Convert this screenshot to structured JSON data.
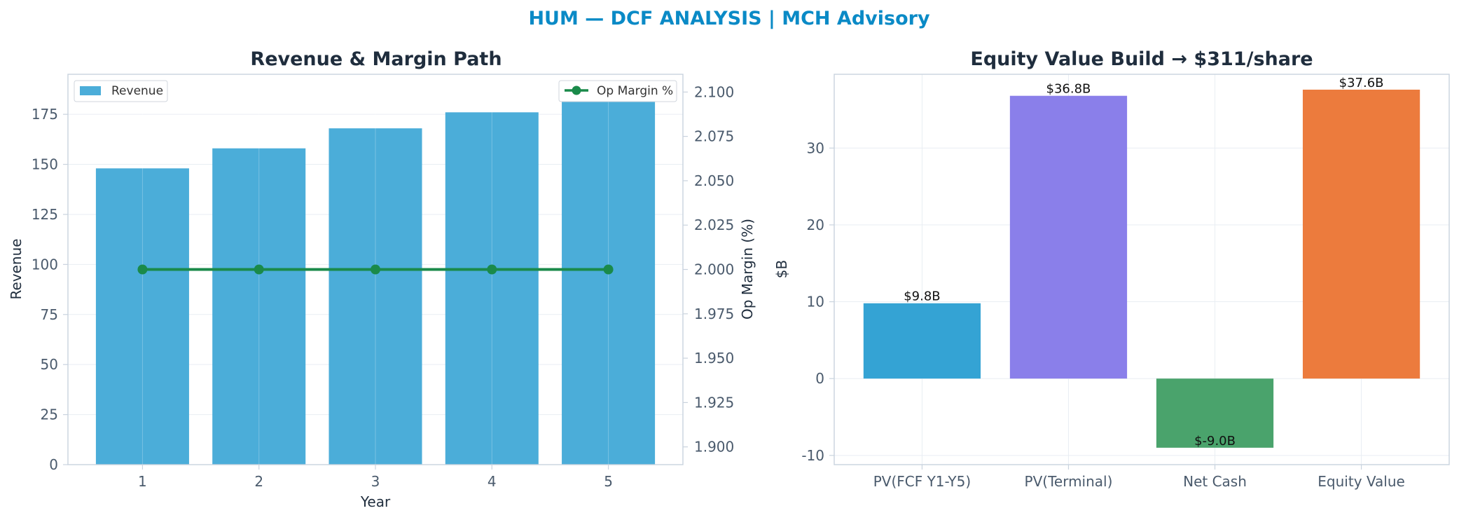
{
  "suptitle": "HUM — DCF ANALYSIS | MCH Advisory",
  "colors": {
    "title": "#0a8ac6",
    "heading": "#1f2d3d",
    "axis": "#c9d3de",
    "tick": "#4a5a6c",
    "grid": "#e9eef3",
    "revenue": "#4badd9",
    "margin_line": "#1a8a4a"
  },
  "chart_data": [
    {
      "type": "bar",
      "title": "Revenue & Margin Path",
      "xlabel": "Year",
      "ylabel": "Revenue",
      "y2label": "Op Margin (%)",
      "categories": [
        "1",
        "2",
        "3",
        "4",
        "5"
      ],
      "ylim": [
        0,
        195
      ],
      "yticks": [
        0,
        25,
        50,
        75,
        100,
        125,
        150,
        175
      ],
      "y2lim": [
        1.89,
        2.11
      ],
      "y2ticks": [
        "1.900",
        "1.925",
        "1.950",
        "1.975",
        "2.000",
        "2.025",
        "2.050",
        "2.075",
        "2.100"
      ],
      "series": [
        {
          "name": "Revenue",
          "kind": "bar",
          "axis": "left",
          "values": [
            148,
            158,
            168,
            176,
            187
          ]
        },
        {
          "name": "Op Margin %",
          "kind": "line",
          "axis": "right",
          "values": [
            2.0,
            2.0,
            2.0,
            2.0,
            2.0
          ]
        }
      ],
      "legend": [
        {
          "label": "Revenue",
          "placement": "top-left"
        },
        {
          "label": "Op Margin %",
          "placement": "top-right"
        }
      ],
      "grid": true
    },
    {
      "type": "bar",
      "title": "Equity Value Build → $311/share",
      "xlabel": "",
      "ylabel": "$B",
      "categories": [
        "PV(FCF Y1-Y5)",
        "PV(Terminal)",
        "Net Cash",
        "Equity Value"
      ],
      "values": [
        9.8,
        36.8,
        -9.0,
        37.6
      ],
      "data_labels": [
        "$9.8B",
        "$36.8B",
        "$-9.0B",
        "$37.6B"
      ],
      "bar_colors": [
        "#34a3d4",
        "#8a7fea",
        "#4aa36c",
        "#ec7b3d"
      ],
      "ylim": [
        -11.2,
        39.6
      ],
      "yticks": [
        -10,
        0,
        10,
        20,
        30
      ],
      "grid": true
    }
  ]
}
